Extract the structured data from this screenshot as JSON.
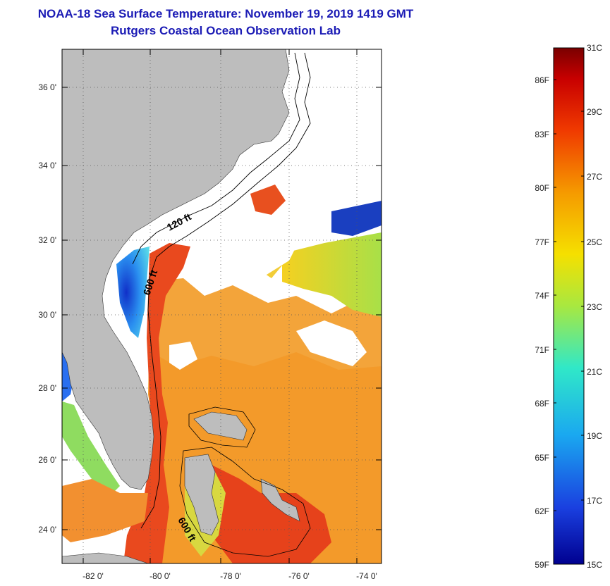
{
  "title": {
    "line1": "NOAA-18 Sea Surface Temperature:  November 19, 2019 1419 GMT",
    "line2": "Rutgers Coastal Ocean Observation Lab"
  },
  "map": {
    "lat_labels": [
      "36 0'",
      "34 0'",
      "32 0'",
      "30 0'",
      "28 0'",
      "26 0'",
      "24 0'"
    ],
    "lon_labels": [
      "-82 0'",
      "-80 0'",
      "-78 0'",
      "-76 0'",
      "-74 0'"
    ],
    "contour_labels": [
      "120 ft",
      "600 ft",
      "600 ft"
    ],
    "colors": {
      "land": "#bdbdbd",
      "cloud": "#ffffff",
      "warm_water": "#f39a2a",
      "hot_water": "#e8401c",
      "cool_water": "#2a6ff0",
      "mild_water": "#b8e04a"
    }
  },
  "colorbar": {
    "celsius_labels": [
      "31C",
      "29C",
      "27C",
      "25C",
      "23C",
      "21C",
      "19C",
      "17C",
      "15C"
    ],
    "fahrenheit_labels": [
      "86F",
      "83F",
      "80F",
      "77F",
      "74F",
      "71F",
      "68F",
      "65F",
      "62F",
      "59F"
    ],
    "stops": [
      "#7a0000",
      "#c80000",
      "#f03a00",
      "#f59a00",
      "#f5e000",
      "#a8e840",
      "#30e8c8",
      "#1aa8f0",
      "#1a40e0",
      "#000090"
    ]
  }
}
